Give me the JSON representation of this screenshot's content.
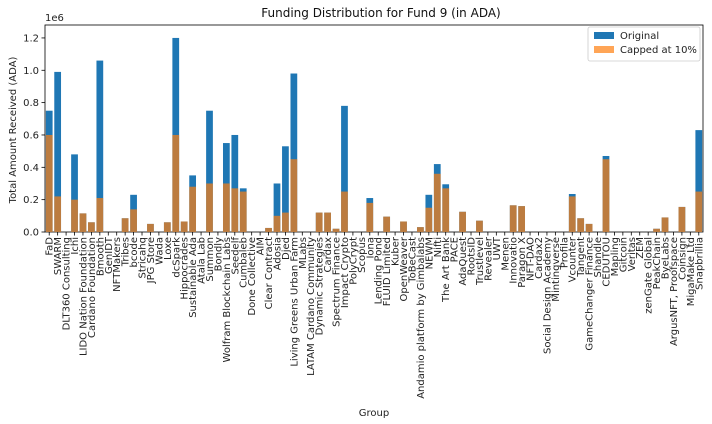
{
  "chart_data": {
    "type": "bar",
    "title": "Funding Distribution for Fund 9 (in ADA)",
    "xlabel": "Group",
    "ylabel": "Total Amount Received (ADA)",
    "y_offset_label": "1e6",
    "ylim": [
      0,
      1.28
    ],
    "y_ticks": [
      "0.0",
      "0.2",
      "0.4",
      "0.6",
      "0.8",
      "1.0",
      "1.2"
    ],
    "legend_placement": "top-right",
    "grid": false,
    "colors": {
      "original": "#1f77b4",
      "capped": "#ff7f0e",
      "overlap": "#b5793b"
    },
    "categories": [
      "FaD",
      "SWARM",
      "DLT360 Consulting",
      "Ichi",
      "LIDO Nation Foundation",
      "Cardano Foundation",
      "Bmooth",
      "GenIDT",
      "NFTMakers",
      "Tribes",
      "bcode",
      "Stricahq",
      "JPG Store",
      "Wada",
      "Loxe",
      "dcSpark",
      "Hippocrades",
      "Sustainable Ada",
      "Atala Lab",
      "Summon",
      "Bondly",
      "Wolfram Blockchain Labs",
      "Seedelf",
      "Cumbaleb",
      "Done Collective",
      "AIM",
      "Clear Contract",
      "Adosia",
      "Djed",
      "Living Greens Urban Farm",
      "MLabs",
      "LATAM Cardano Community",
      "Dynamic Strategies",
      "Cardax",
      "Spectrum Finance",
      "Impact Crypto",
      "PolyCrypt",
      "Scopus",
      "Iona",
      "Lending Pond",
      "FLUID Limited",
      "Kuber",
      "OpenWeaver",
      "ToBeCast",
      "Andamio platform by Gimbalabs",
      "NEWM",
      "Nifti",
      "The Art Bank",
      "PACE",
      "AdaQuest",
      "RootsID",
      "Trustlevel",
      "Revealer",
      "UWT",
      "Menen",
      "Innovatio",
      "Paragon X",
      "NFT-DAO",
      "Cardax2",
      "Social Design Academy",
      "Mintingverse",
      "Profila",
      "Vcounter",
      "Tangent",
      "GameChanger Finance",
      "Shandle",
      "CEDUTOU",
      "Mapling",
      "Gitcoin",
      "Veritas",
      "ZEM",
      "zenGate Global",
      "PeakChain",
      "ByeLabs",
      "ArgusNFT, Proofspace",
      "Coinsign",
      "MigaMake Ltd",
      "Snapbrillia"
    ],
    "series": [
      {
        "name": "Original",
        "values": [
          0.75,
          0.99,
          0.0,
          0.48,
          0.115,
          0.06,
          1.06,
          0.0,
          0.0,
          0.085,
          0.23,
          0.0,
          0.05,
          0.0,
          0.06,
          1.2,
          0.065,
          0.35,
          0.0,
          0.75,
          0.0,
          0.55,
          0.6,
          0.27,
          0.0,
          0.0,
          0.025,
          0.3,
          0.53,
          0.98,
          0.0,
          0.0,
          0.12,
          0.12,
          0.02,
          0.78,
          0.0,
          0.0,
          0.21,
          0.0,
          0.095,
          0.0,
          0.065,
          0.0,
          0.03,
          0.23,
          0.42,
          0.295,
          0.0,
          0.125,
          0.0,
          0.07,
          0.0,
          0.0,
          0.0,
          0.165,
          0.16,
          0.0,
          0.0,
          0.0,
          0.0,
          0.0,
          0.235,
          0.085,
          0.05,
          0.0,
          0.47,
          0.0,
          0.0,
          0.0,
          0.0,
          0.0,
          0.02,
          0.09,
          0.0,
          0.155,
          0.0,
          0.63
        ]
      },
      {
        "name": "Capped at 10%",
        "values": [
          0.6,
          0.22,
          0.0,
          0.2,
          0.115,
          0.06,
          0.21,
          0.0,
          0.0,
          0.085,
          0.14,
          0.0,
          0.05,
          0.0,
          0.06,
          0.6,
          0.065,
          0.28,
          0.0,
          0.3,
          0.0,
          0.3,
          0.27,
          0.25,
          0.0,
          0.0,
          0.025,
          0.1,
          0.12,
          0.45,
          0.0,
          0.0,
          0.12,
          0.12,
          0.02,
          0.25,
          0.0,
          0.0,
          0.18,
          0.0,
          0.095,
          0.0,
          0.065,
          0.0,
          0.03,
          0.15,
          0.36,
          0.27,
          0.0,
          0.125,
          0.0,
          0.07,
          0.0,
          0.0,
          0.0,
          0.165,
          0.16,
          0.0,
          0.0,
          0.0,
          0.0,
          0.0,
          0.22,
          0.085,
          0.05,
          0.0,
          0.45,
          0.0,
          0.0,
          0.0,
          0.0,
          0.0,
          0.02,
          0.09,
          0.0,
          0.155,
          0.0,
          0.25
        ]
      }
    ]
  }
}
